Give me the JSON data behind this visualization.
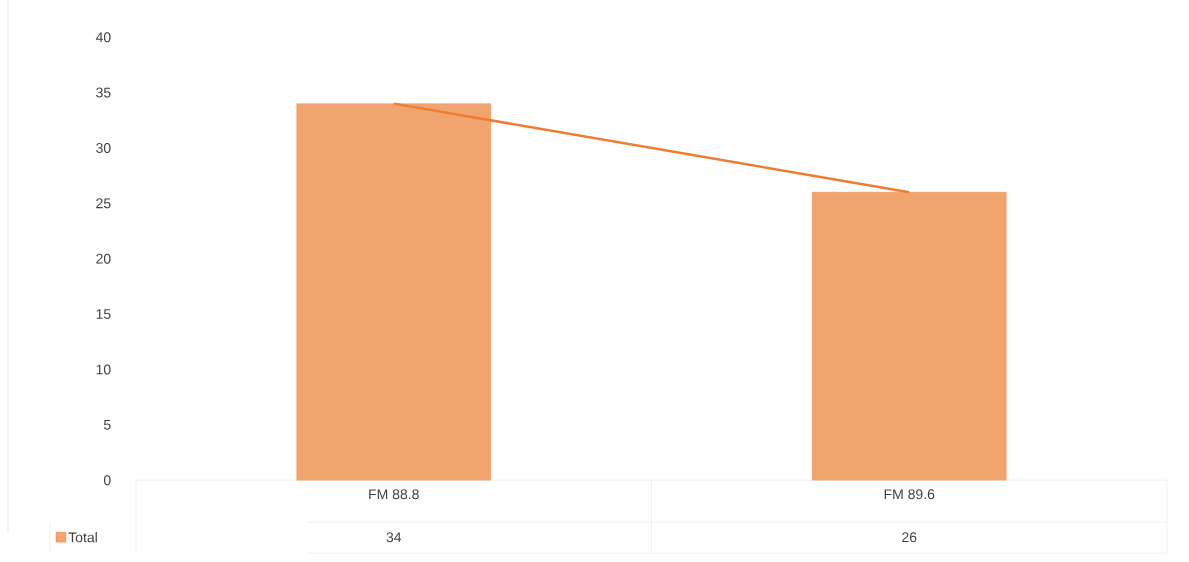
{
  "chart_data": {
    "type": "bar",
    "categories": [
      "FM 88.8",
      "FM 89.6"
    ],
    "series": [
      {
        "name": "Total",
        "color": "#ed7d31",
        "values": [
          34,
          26
        ],
        "value_labels": [
          "34",
          "26"
        ]
      },
      {
        "type": "line",
        "color": "#ed7d31",
        "values": [
          34,
          26
        ]
      }
    ],
    "ylim": [
      0,
      40
    ],
    "yticks": [
      0,
      5,
      10,
      15,
      20,
      25,
      30,
      35,
      40
    ],
    "legend": "bottom",
    "grid": false
  }
}
